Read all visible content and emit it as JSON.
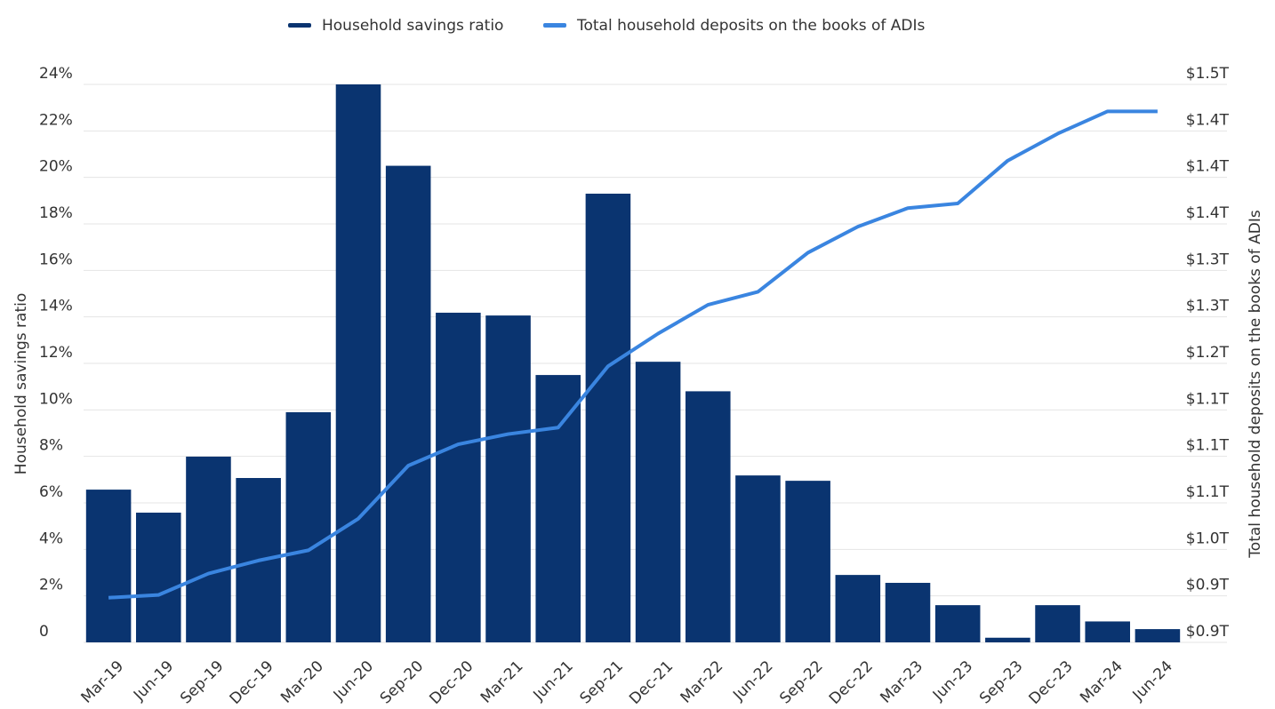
{
  "chart_data": {
    "type": "bar-line",
    "categories": [
      "Mar-19",
      "Jun-19",
      "Sep-19",
      "Dec-19",
      "Mar-20",
      "Jun-20",
      "Sep-20",
      "Dec-20",
      "Mar-21",
      "Jun-21",
      "Sep-21",
      "Dec-21",
      "Mar-22",
      "Jun-22",
      "Sep-22",
      "Dec-22",
      "Mar-23",
      "Jun-23",
      "Sep-23",
      "Dec-23",
      "Mar-24",
      "Jun-24"
    ],
    "series": [
      {
        "name": "Household savings ratio",
        "color": "#0a3470",
        "type": "bar",
        "values": [
          6.57,
          5.58,
          7.99,
          7.07,
          9.9,
          24.0,
          20.5,
          14.18,
          14.06,
          11.5,
          19.3,
          12.07,
          10.8,
          7.18,
          6.95,
          2.9,
          2.56,
          1.6,
          0.2,
          1.6,
          0.9,
          0.57
        ]
      },
      {
        "name": "Total household deposits on the books of ADIs",
        "color": "#3a85e0",
        "type": "line",
        "axis": "y2",
        "values": [
          0.948,
          0.951,
          0.974,
          0.988,
          0.999,
          1.033,
          1.09,
          1.113,
          1.124,
          1.131,
          1.197,
          1.232,
          1.263,
          1.277,
          1.319,
          1.347,
          1.367,
          1.372,
          1.418,
          1.447,
          1.471,
          1.471
        ]
      }
    ],
    "y_label": "Household savings ratio",
    "y2_label": "Total household deposits on the books of ADIs",
    "ylim": [
      0,
      24
    ],
    "yticks": [
      0,
      {
        "value": 2,
        "label": "2%"
      },
      {
        "value": 4,
        "label": "4%"
      },
      {
        "value": 6,
        "label": "6%"
      },
      {
        "value": 8,
        "label": "8%"
      },
      {
        "value": 10,
        "label": "10%"
      },
      {
        "value": 12,
        "label": "12%"
      },
      {
        "value": 14,
        "label": "14%"
      },
      {
        "value": 16,
        "label": "16%"
      },
      {
        "value": 18,
        "label": "18%"
      },
      {
        "value": 20,
        "label": "20%"
      },
      {
        "value": 22,
        "label": "22%"
      },
      {
        "value": 24,
        "label": "24%"
      }
    ],
    "y2lim": [
      0.9,
      1.5
    ],
    "y2ticks": [
      {
        "value": 0.9,
        "label": "$0.9T"
      },
      {
        "value": 0.95,
        "label": "$0.9T"
      },
      {
        "value": 1.0,
        "label": "$1.0T"
      },
      {
        "value": 1.05,
        "label": "$1.1T"
      },
      {
        "value": 1.1,
        "label": "$1.1T"
      },
      {
        "value": 1.15,
        "label": "$1.1T"
      },
      {
        "value": 1.2,
        "label": "$1.2T"
      },
      {
        "value": 1.25,
        "label": "$1.3T"
      },
      {
        "value": 1.3,
        "label": "$1.3T"
      },
      {
        "value": 1.35,
        "label": "$1.4T"
      },
      {
        "value": 1.4,
        "label": "$1.4T"
      },
      {
        "value": 1.45,
        "label": "$1.4T"
      },
      {
        "value": 1.5,
        "label": "$1.5T"
      }
    ],
    "grid": true,
    "legend": "top"
  }
}
